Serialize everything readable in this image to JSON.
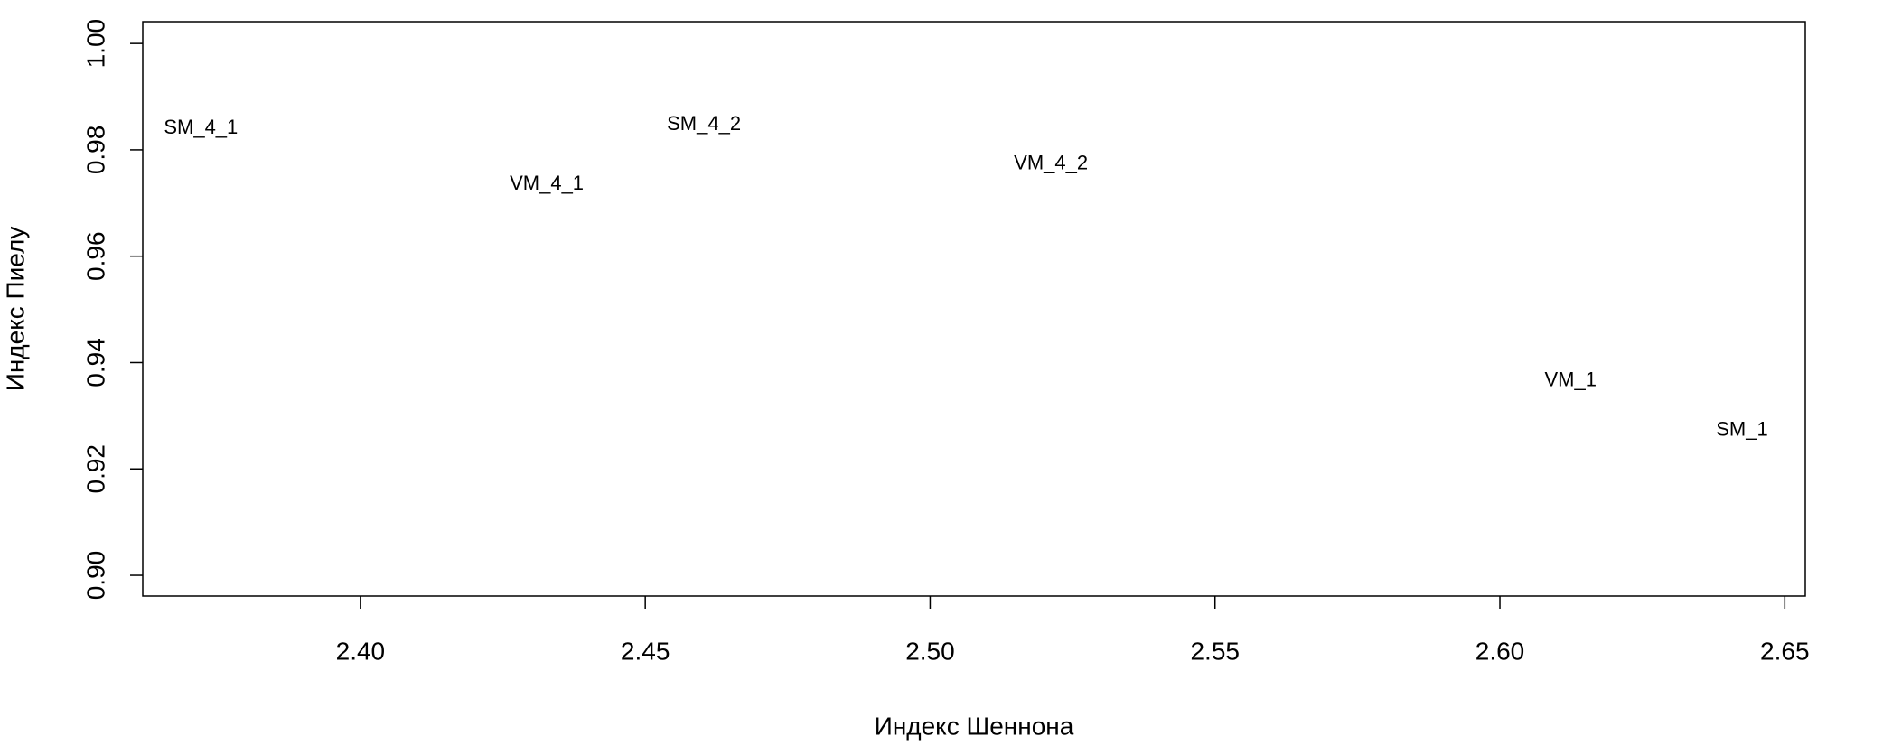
{
  "chart_data": {
    "type": "scatter",
    "x_label": "Индекс Шеннона",
    "y_label": "Индекс Пиелу",
    "labels": [
      "SM_4_1",
      "SM_4_2",
      "VM_4_1",
      "VM_4_2",
      "VM_1",
      "SM_1"
    ],
    "x": [
      2.372,
      2.4603,
      2.4327,
      2.5212,
      2.6124,
      2.6425
    ],
    "y": [
      0.984,
      0.9847,
      0.9735,
      0.9773,
      0.9366,
      0.9272
    ],
    "xlim": [
      2.3618,
      2.6536
    ],
    "ylim": [
      0.8961,
      1.0041
    ],
    "xticks": [
      {
        "value": 2.4,
        "label": "2.40"
      },
      {
        "value": 2.45,
        "label": "2.45"
      },
      {
        "value": 2.5,
        "label": "2.50"
      },
      {
        "value": 2.55,
        "label": "2.55"
      },
      {
        "value": 2.6,
        "label": "2.60"
      },
      {
        "value": 2.65,
        "label": "2.65"
      }
    ],
    "yticks": [
      {
        "value": 0.9,
        "label": "0.90"
      },
      {
        "value": 0.92,
        "label": "0.92"
      },
      {
        "value": 0.94,
        "label": "0.94"
      },
      {
        "value": 0.96,
        "label": "0.96"
      },
      {
        "value": 0.98,
        "label": "0.98"
      },
      {
        "value": 1.0,
        "label": "1.00"
      }
    ]
  }
}
